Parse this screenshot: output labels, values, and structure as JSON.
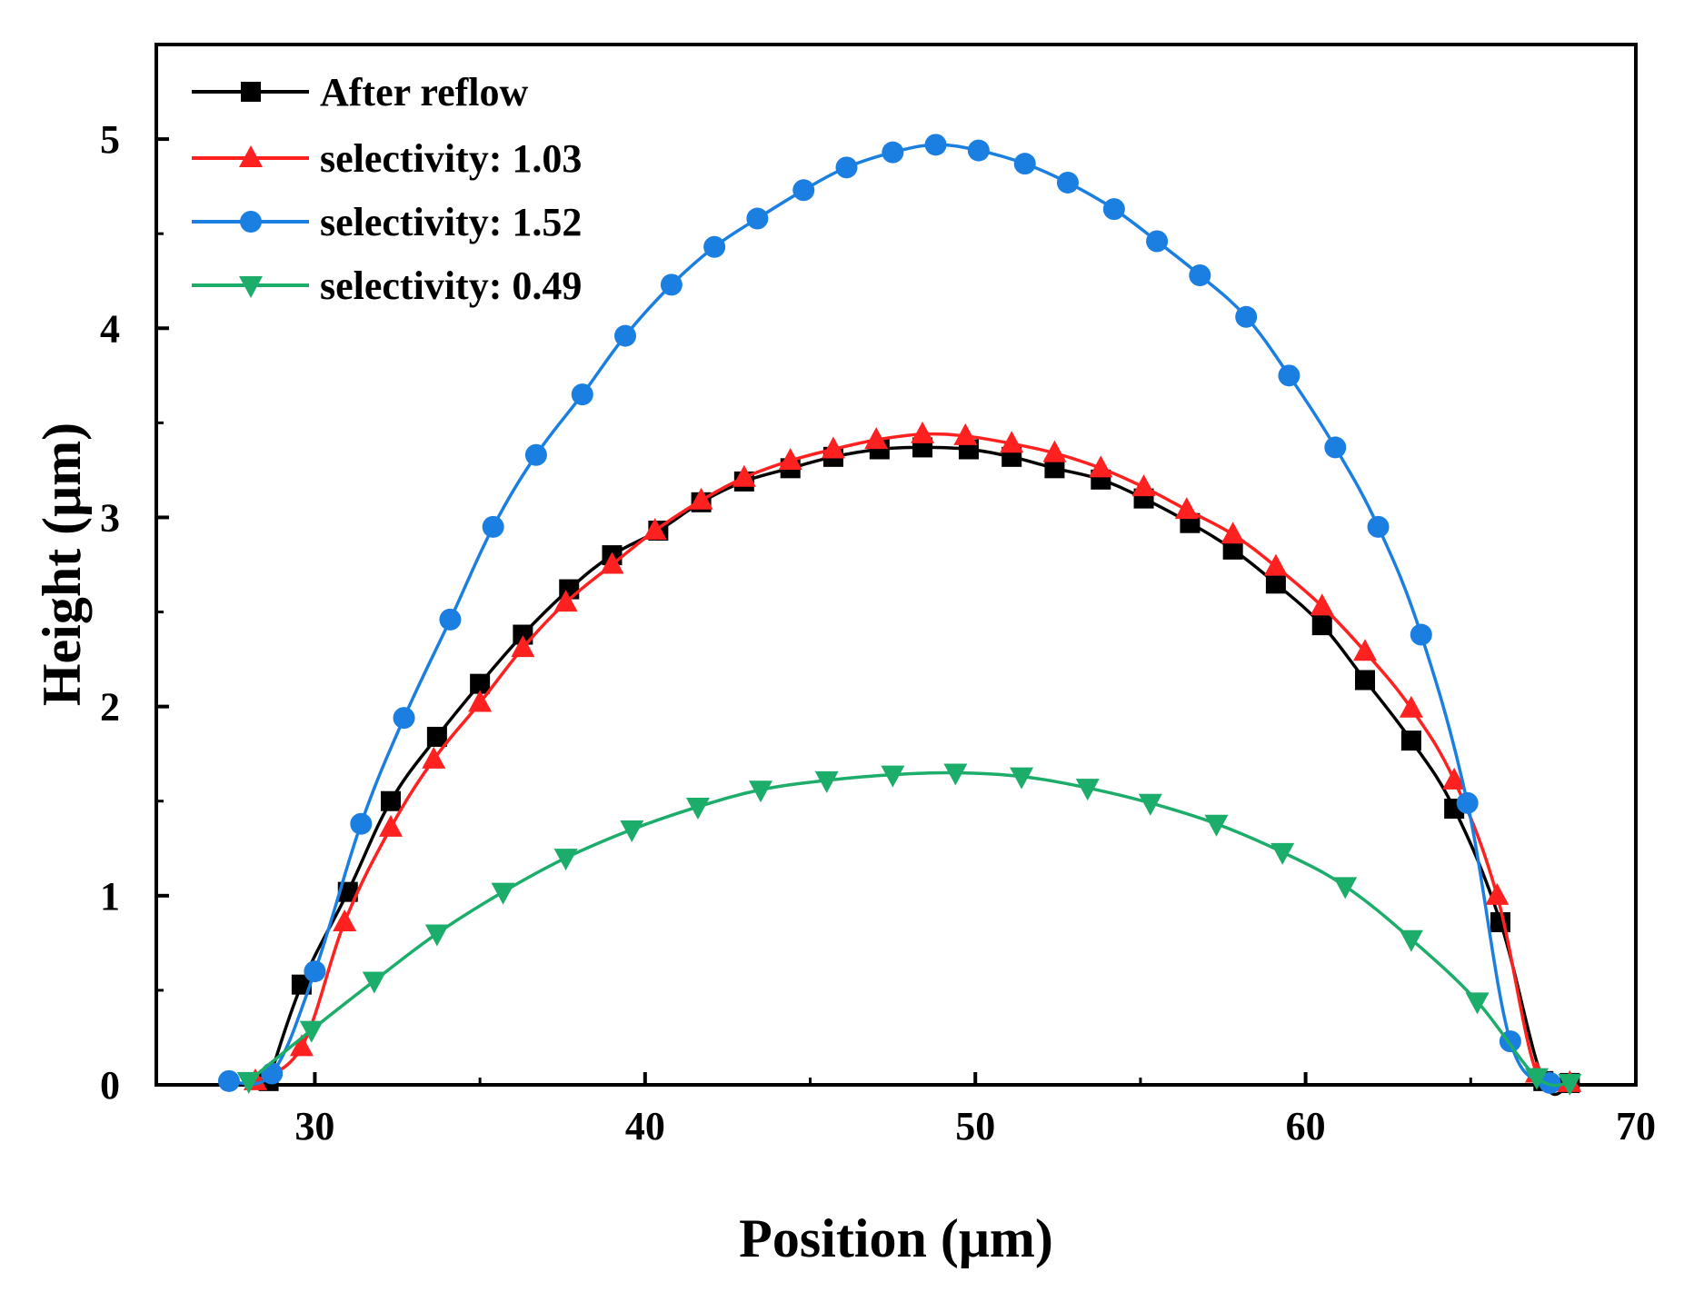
{
  "chart_data": {
    "type": "line",
    "xlabel": "Position (μm)",
    "ylabel": "Height (μm)",
    "xlim": [
      25.2,
      70
    ],
    "ylim": [
      0,
      5.5
    ],
    "xticks": [
      30,
      40,
      50,
      60,
      70
    ],
    "yticks": [
      0,
      1,
      2,
      3,
      4,
      5
    ],
    "grid": false,
    "legend_position": "top-left",
    "series": [
      {
        "name": "After reflow",
        "color": "#000000",
        "marker": "square",
        "x": [
          28.6,
          29.6,
          31.0,
          32.3,
          33.7,
          35.0,
          36.3,
          37.7,
          39.0,
          40.4,
          41.7,
          43.0,
          44.4,
          45.7,
          47.1,
          48.4,
          49.8,
          51.1,
          52.4,
          53.8,
          55.1,
          56.5,
          57.8,
          59.1,
          60.5,
          61.8,
          63.2,
          64.5,
          65.9,
          67.2,
          68.0
        ],
        "y": [
          0.02,
          0.53,
          1.02,
          1.5,
          1.84,
          2.12,
          2.38,
          2.62,
          2.8,
          2.93,
          3.08,
          3.19,
          3.26,
          3.32,
          3.36,
          3.37,
          3.36,
          3.32,
          3.26,
          3.2,
          3.1,
          2.97,
          2.83,
          2.65,
          2.43,
          2.14,
          1.82,
          1.46,
          0.86,
          0.02,
          0.01
        ]
      },
      {
        "name": "selectivity: 1.03",
        "color": "#ff2020",
        "marker": "triangle-up",
        "x": [
          28.2,
          29.6,
          30.9,
          32.3,
          33.6,
          35.0,
          36.3,
          37.6,
          39.0,
          40.3,
          41.7,
          43.0,
          44.4,
          45.7,
          47.0,
          48.4,
          49.7,
          51.1,
          52.4,
          53.8,
          55.1,
          56.4,
          57.8,
          59.1,
          60.5,
          61.8,
          63.2,
          64.5,
          65.8,
          67.0,
          68.0
        ],
        "y": [
          0.02,
          0.2,
          0.86,
          1.36,
          1.72,
          2.02,
          2.31,
          2.55,
          2.75,
          2.93,
          3.09,
          3.21,
          3.3,
          3.36,
          3.41,
          3.44,
          3.43,
          3.39,
          3.34,
          3.26,
          3.16,
          3.04,
          2.91,
          2.74,
          2.53,
          2.29,
          1.99,
          1.61,
          1.0,
          0.06,
          0.01
        ]
      },
      {
        "name": "selectivity: 1.52",
        "color": "#1a7fe0",
        "marker": "circle",
        "x": [
          27.4,
          28.7,
          30.0,
          31.4,
          32.7,
          34.1,
          35.4,
          36.7,
          38.1,
          39.4,
          40.8,
          42.1,
          43.4,
          44.8,
          46.1,
          47.5,
          48.8,
          50.1,
          51.5,
          52.8,
          54.2,
          55.5,
          56.8,
          58.2,
          59.5,
          60.9,
          62.2,
          63.5,
          64.9,
          66.2,
          67.4
        ],
        "y": [
          0.02,
          0.06,
          0.6,
          1.38,
          1.94,
          2.46,
          2.95,
          3.33,
          3.65,
          3.96,
          4.23,
          4.43,
          4.58,
          4.73,
          4.85,
          4.93,
          4.97,
          4.94,
          4.87,
          4.77,
          4.63,
          4.46,
          4.28,
          4.06,
          3.75,
          3.37,
          2.95,
          2.38,
          1.49,
          0.23,
          0.01
        ]
      },
      {
        "name": "selectivity: 0.49",
        "color": "#1cad6a",
        "marker": "triangle-down",
        "x": [
          28.0,
          29.9,
          31.8,
          33.7,
          35.7,
          37.6,
          39.6,
          41.6,
          43.5,
          45.5,
          47.5,
          49.4,
          51.4,
          53.4,
          55.3,
          57.3,
          59.3,
          61.2,
          63.2,
          65.2,
          67.0,
          68.0
        ],
        "y": [
          0.02,
          0.29,
          0.55,
          0.8,
          1.02,
          1.2,
          1.35,
          1.47,
          1.56,
          1.61,
          1.64,
          1.65,
          1.63,
          1.57,
          1.49,
          1.38,
          1.23,
          1.05,
          0.77,
          0.44,
          0.04,
          0.01
        ]
      }
    ]
  }
}
